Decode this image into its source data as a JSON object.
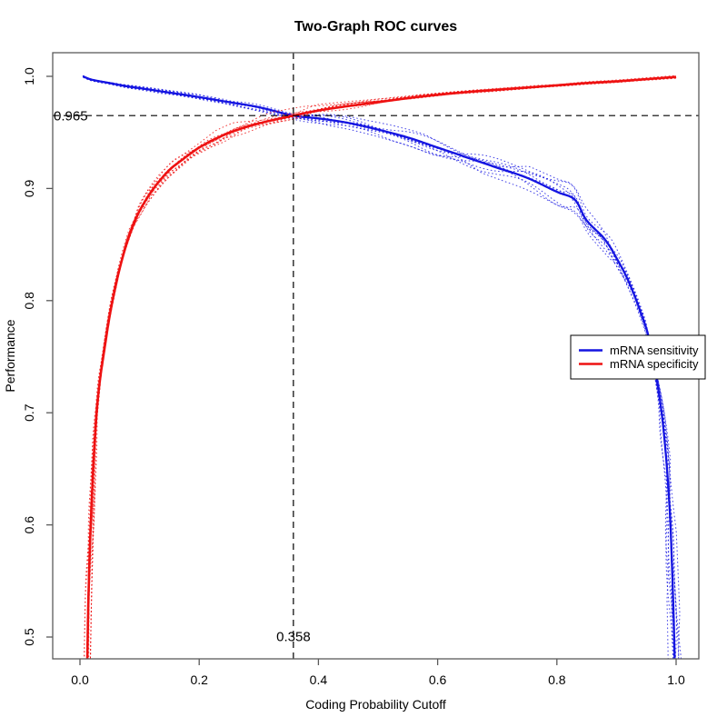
{
  "chart_data": {
    "type": "line",
    "title": "Two-Graph ROC curves",
    "xlabel": "Coding Probability Cutoff",
    "ylabel": "Performance",
    "xlim": [
      0,
      1
    ],
    "ylim": [
      0.48,
      1.02
    ],
    "grid": false,
    "x_ticks": [
      0.0,
      0.2,
      0.4,
      0.6,
      0.8,
      1.0
    ],
    "x_tick_labels": [
      "0.0",
      "0.2",
      "0.4",
      "0.6",
      "0.8",
      "1.0"
    ],
    "y_ticks": [
      0.5,
      0.6,
      0.7,
      0.8,
      0.9,
      1.0
    ],
    "y_tick_labels": [
      "0.5",
      "0.6",
      "0.7",
      "0.8",
      "0.9",
      "1.0"
    ],
    "annotations": {
      "cutoff": {
        "value": 0.358,
        "label": "0.358"
      },
      "performance": {
        "value": 0.965,
        "label": "0.965"
      }
    },
    "legend": {
      "position": "right-middle",
      "items": [
        {
          "label": "mRNA sensitivity",
          "color": "#1414e1"
        },
        {
          "label": "mRNA specificity",
          "color": "#ee1111"
        }
      ]
    },
    "series": [
      {
        "name": "mRNA sensitivity",
        "color": "#1414e1",
        "x": [
          0.005,
          0.02,
          0.05,
          0.08,
          0.1,
          0.15,
          0.2,
          0.25,
          0.3,
          0.358,
          0.4,
          0.45,
          0.5,
          0.55,
          0.6,
          0.65,
          0.7,
          0.75,
          0.8,
          0.83,
          0.85,
          0.88,
          0.9,
          0.92,
          0.94,
          0.955,
          0.968,
          0.975,
          0.98,
          0.985,
          0.99,
          0.993,
          0.996,
          0.998
        ],
        "y": [
          1.0,
          0.997,
          0.994,
          0.991,
          0.9895,
          0.9855,
          0.9815,
          0.977,
          0.9725,
          0.965,
          0.9625,
          0.9585,
          0.9525,
          0.9455,
          0.9365,
          0.9275,
          0.9185,
          0.9095,
          0.897,
          0.89,
          0.8715,
          0.855,
          0.838,
          0.8175,
          0.7905,
          0.7655,
          0.728,
          0.703,
          0.679,
          0.648,
          0.606,
          0.565,
          0.516,
          0.47
        ]
      },
      {
        "name": "mRNA specificity",
        "color": "#ee1111",
        "x": [
          0.012,
          0.014,
          0.017,
          0.02,
          0.024,
          0.028,
          0.033,
          0.04,
          0.05,
          0.06,
          0.07,
          0.08,
          0.09,
          0.1,
          0.115,
          0.13,
          0.15,
          0.17,
          0.2,
          0.23,
          0.26,
          0.3,
          0.358,
          0.4,
          0.45,
          0.5,
          0.55,
          0.6,
          0.65,
          0.7,
          0.75,
          0.8,
          0.85,
          0.9,
          0.95,
          1.0
        ],
        "y": [
          0.47,
          0.53,
          0.585,
          0.625,
          0.668,
          0.7,
          0.727,
          0.753,
          0.787,
          0.8135,
          0.8355,
          0.8535,
          0.868,
          0.88,
          0.8935,
          0.9045,
          0.9165,
          0.925,
          0.9365,
          0.945,
          0.9515,
          0.958,
          0.965,
          0.9695,
          0.9735,
          0.977,
          0.9805,
          0.9835,
          0.986,
          0.988,
          0.99,
          0.992,
          0.994,
          0.9955,
          0.9975,
          0.9995
        ]
      }
    ],
    "replicates": {
      "count": 9,
      "style": "dotted"
    }
  },
  "colors": {
    "sensitivity": "#1414e1",
    "specificity": "#ee1111",
    "threshold_line": "#000000",
    "plot_border": "#5a5a5a",
    "background": "#ffffff"
  }
}
